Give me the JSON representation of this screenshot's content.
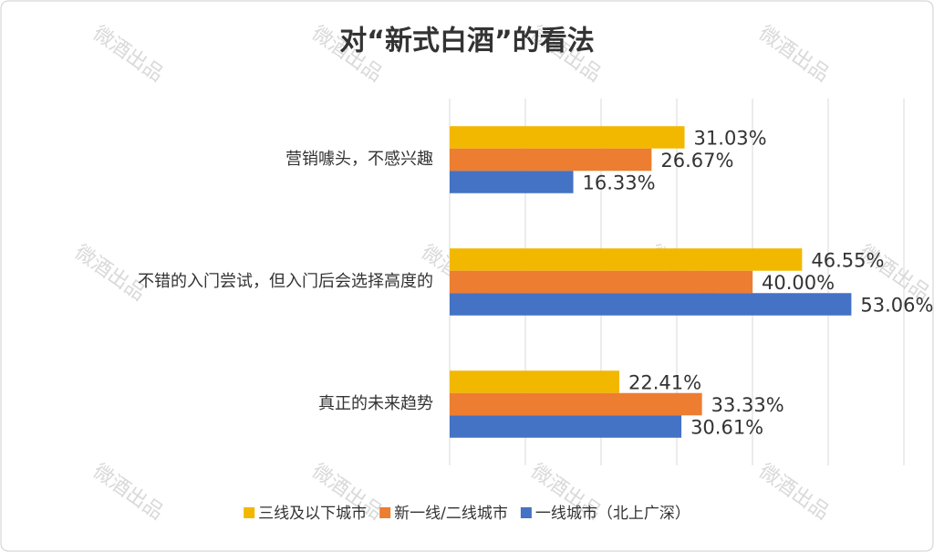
{
  "chart_data": {
    "type": "bar",
    "orientation": "horizontal",
    "title": "对“新式白酒”的看法",
    "watermark": "微酒出品",
    "categories": [
      "营销噱头，不感兴趣",
      "不错的入门尝试，但入门后会选择高度的",
      "真正的未来趋势"
    ],
    "series": [
      {
        "name": "三线及以下城市",
        "color": "#f2b800",
        "values": [
          31.03,
          46.55,
          22.41
        ],
        "value_labels": [
          "31.03%",
          "46.55%",
          "22.41%"
        ]
      },
      {
        "name": "新一线/二线城市",
        "color": "#ed7d31",
        "values": [
          26.67,
          40.0,
          33.33
        ],
        "value_labels": [
          "26.67%",
          "40.00%",
          "33.33%"
        ]
      },
      {
        "name": "一线城市（北上广深）",
        "color": "#4472c4",
        "values": [
          16.33,
          53.06,
          30.61
        ],
        "value_labels": [
          "16.33%",
          "53.06%",
          "30.61%"
        ]
      }
    ],
    "xlim": [
      0,
      60
    ],
    "xticks": [
      0,
      10,
      20,
      30,
      40,
      50,
      60
    ],
    "grid": true,
    "legend": "bottom"
  }
}
